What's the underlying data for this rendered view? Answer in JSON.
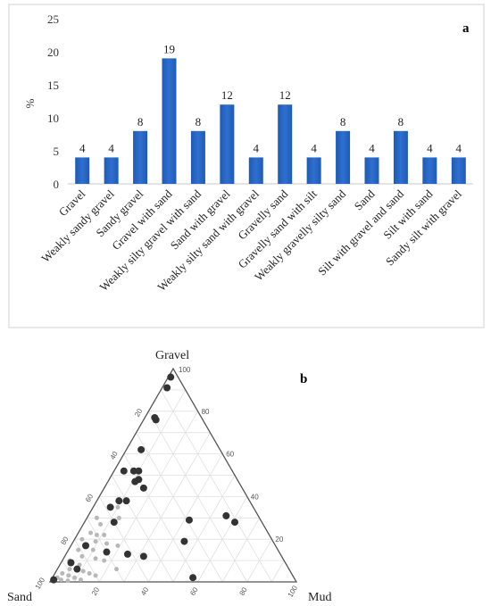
{
  "chart_data": [
    {
      "type": "bar",
      "panel_label": "a",
      "ylabel": "%",
      "ylim": [
        0,
        25
      ],
      "yticks": [
        0,
        5,
        10,
        15,
        20,
        25
      ],
      "bar_color": "#2f6fcf",
      "categories": [
        "Gravel",
        "Weakly sandy gravel",
        "Sandy gravel",
        "Gravel with sand",
        "Weakly silty gravel with sand",
        "Sand with gravel",
        "Weakly silty sand with gravel",
        "Gravelly sand",
        "Gravelly sand with silt",
        "Weakly gravelly silty sand",
        "Sand",
        "Silt with gravel and sand",
        "Silt with sand",
        "Sandy silt with gravel"
      ],
      "values": [
        4,
        4,
        8,
        19,
        8,
        12,
        4,
        12,
        4,
        8,
        4,
        8,
        4,
        4
      ]
    },
    {
      "type": "scatter",
      "subtype": "ternary",
      "panel_label": "b",
      "vertices": {
        "top": "Gravel",
        "left": "Sand",
        "right": "Mud"
      },
      "axis_ticks": [
        {
          "label": "100",
          "value": 100
        },
        {
          "label": "80",
          "value": 80
        },
        {
          "label": "60",
          "value": 60
        },
        {
          "label": "40",
          "value": 40
        },
        {
          "label": "20",
          "value": 20
        }
      ],
      "left_ticks": [
        "20",
        "40",
        "60",
        "80",
        "100"
      ],
      "bottom_ticks": [
        "20",
        "40",
        "60",
        "80",
        "100"
      ],
      "right_ticks": [
        "80",
        "60",
        "40",
        "20"
      ],
      "series": [
        {
          "color": "#333333",
          "points": [
            {
              "mud": 1,
              "gravel": 96
            },
            {
              "mud": 2,
              "gravel": 91
            },
            {
              "mud": 4,
              "gravel": 77
            },
            {
              "mud": 5,
              "gravel": 76
            },
            {
              "mud": 6,
              "gravel": 62
            },
            {
              "mud": 10,
              "gravel": 52
            },
            {
              "mud": 12,
              "gravel": 48
            },
            {
              "mud": 11,
              "gravel": 47
            },
            {
              "mud": 4,
              "gravel": 52
            },
            {
              "mud": 8,
              "gravel": 52
            },
            {
              "mud": 16,
              "gravel": 44
            },
            {
              "mud": 9,
              "gravel": 38
            },
            {
              "mud": 12,
              "gravel": 38
            },
            {
              "mud": 7,
              "gravel": 35
            },
            {
              "mud": 12,
              "gravel": 28
            },
            {
              "mud": 42,
              "gravel": 29
            },
            {
              "mud": 56,
              "gravel": 31
            },
            {
              "mud": 61,
              "gravel": 28
            },
            {
              "mud": 45,
              "gravel": 19
            },
            {
              "mud": 32,
              "gravel": 12
            },
            {
              "mud": 16,
              "gravel": 14
            },
            {
              "mud": 6,
              "gravel": 17
            },
            {
              "mud": 4,
              "gravel": 9
            },
            {
              "mud": 25,
              "gravel": 13
            },
            {
              "mud": 57,
              "gravel": 2
            },
            {
              "mud": 1,
              "gravel": 1
            },
            {
              "mud": 8,
              "gravel": 6
            }
          ]
        },
        {
          "color": "#b8b8b8",
          "points": [
            {
              "mud": 10,
              "gravel": 35
            },
            {
              "mud": 13,
              "gravel": 30
            },
            {
              "mud": 4,
              "gravel": 30
            },
            {
              "mud": 7,
              "gravel": 27
            },
            {
              "mud": 5,
              "gravel": 23
            },
            {
              "mud": 8,
              "gravel": 22
            },
            {
              "mud": 11,
              "gravel": 22
            },
            {
              "mud": 3,
              "gravel": 20
            },
            {
              "mud": 9,
              "gravel": 19
            },
            {
              "mud": 14,
              "gravel": 18
            },
            {
              "mud": 4,
              "gravel": 15
            },
            {
              "mud": 10,
              "gravel": 15
            },
            {
              "mud": 19,
              "gravel": 17
            },
            {
              "mud": 7,
              "gravel": 12
            },
            {
              "mud": 13,
              "gravel": 11
            },
            {
              "mud": 3,
              "gravel": 10
            },
            {
              "mud": 8,
              "gravel": 8
            },
            {
              "mud": 17,
              "gravel": 10
            },
            {
              "mud": 5,
              "gravel": 6
            },
            {
              "mud": 11,
              "gravel": 5
            },
            {
              "mud": 14,
              "gravel": 4
            },
            {
              "mud": 3,
              "gravel": 4
            },
            {
              "mud": 6,
              "gravel": 3
            },
            {
              "mud": 9,
              "gravel": 2
            },
            {
              "mud": 17,
              "gravel": 3
            },
            {
              "mud": 4,
              "gravel": 1
            },
            {
              "mud": 12,
              "gravel": 1
            },
            {
              "mud": 7,
              "gravel": 0.5
            },
            {
              "mud": 2,
              "gravel": 2
            },
            {
              "mud": 24,
              "gravel": 6
            }
          ]
        }
      ]
    }
  ]
}
